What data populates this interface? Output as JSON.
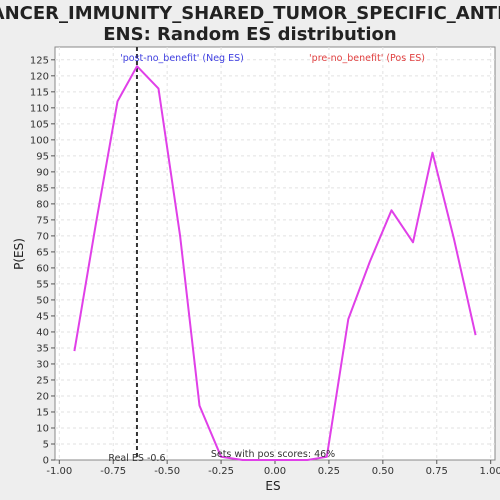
{
  "chart_data": {
    "type": "line",
    "title": "CANCER_IMMUNITY_SHARED_TUMOR_SPECIFIC_ANTIGENS: Random ES distribution",
    "title_lines": [
      "CANCER_IMMUNITY_SHARED_TUMOR_SPECIFIC_ANTIG",
      "ENS: Random ES distribution"
    ],
    "xlabel": "ES",
    "ylabel": "P(ES)",
    "xlim": [
      -1.02,
      1.02
    ],
    "ylim": [
      0,
      129
    ],
    "x_ticks": [
      -1.0,
      -0.75,
      -0.5,
      -0.25,
      0.0,
      0.25,
      0.5,
      0.75,
      1.0
    ],
    "x_tick_labels": [
      "-1.00",
      "-0.75",
      "-0.50",
      "-0.25",
      "0.00",
      "0.25",
      "0.50",
      "0.75",
      "1.00"
    ],
    "y_ticks": [
      0,
      5,
      10,
      15,
      20,
      25,
      30,
      35,
      40,
      45,
      50,
      55,
      60,
      65,
      70,
      75,
      80,
      85,
      90,
      95,
      100,
      105,
      110,
      115,
      120,
      125
    ],
    "y_tick_labels": [
      "0",
      "5",
      "10",
      "15",
      "20",
      "25",
      "30",
      "35",
      "40",
      "45",
      "50",
      "55",
      "60",
      "65",
      "70",
      "75",
      "80",
      "85",
      "90",
      "95",
      "100",
      "105",
      "110",
      "115",
      "120",
      "125"
    ],
    "grid": true,
    "series": [
      {
        "color": "#e040e8",
        "x": [
          -0.93,
          -0.83,
          -0.73,
          -0.64,
          -0.54,
          -0.44,
          -0.35,
          -0.25,
          -0.15,
          -0.05,
          0.05,
          0.15,
          0.24,
          0.34,
          0.44,
          0.54,
          0.64,
          0.73,
          0.83,
          0.93
        ],
        "y": [
          34,
          74,
          112,
          123,
          116,
          70,
          17,
          1,
          0,
          0,
          0,
          0,
          1,
          44,
          62,
          78,
          68,
          96,
          69,
          39
        ]
      }
    ],
    "real_es": {
      "x": -0.64,
      "label": "Real ES -0.6",
      "color": "#333333"
    },
    "annotations": {
      "neg_label": "'post-no_benefit' (Neg ES)",
      "neg_color": "#4040e0",
      "pos_label": "'pre-no_benefit' (Pos ES)",
      "pos_color": "#e04040",
      "pos_scores_label": "Sets with pos scores: 46%"
    }
  }
}
